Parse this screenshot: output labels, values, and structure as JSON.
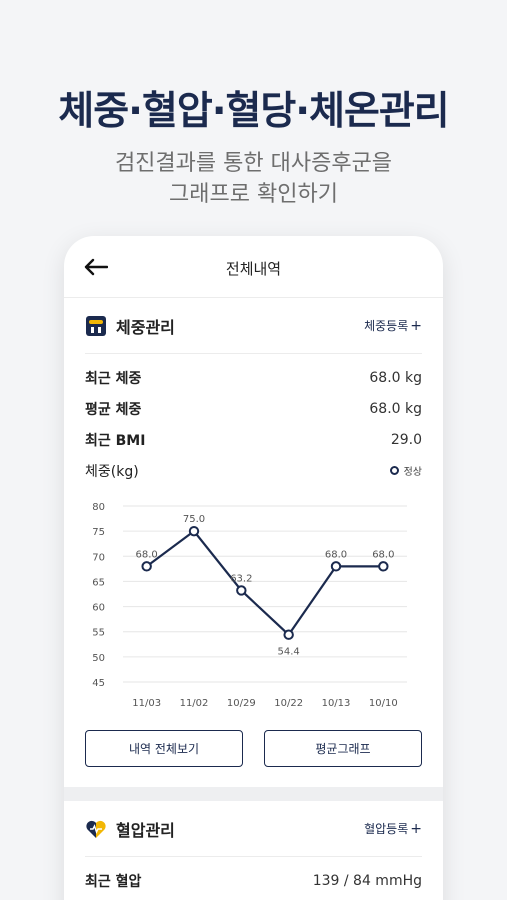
{
  "hero": {
    "title": "체중·혈압·혈당·체온관리",
    "subtitle_line1": "검진결과를 통한 대사증후군을",
    "subtitle_line2": "그래프로 확인하기"
  },
  "nav": {
    "title": "전체내역",
    "back_icon": "arrow-left-icon"
  },
  "weight": {
    "title": "체중관리",
    "icon": "scale-icon",
    "register_label": "체중등록",
    "plus": "+",
    "rows": [
      {
        "label": "최근 체중",
        "value": "68.0 kg"
      },
      {
        "label": "평균 체중",
        "value": "68.0 kg"
      },
      {
        "label": "최근 BMI",
        "value": "29.0"
      }
    ],
    "chart_label": "체중(kg)",
    "legend_label": "정상",
    "btn_history": "내역 전체보기",
    "btn_avg": "평균그래프"
  },
  "blood_pressure": {
    "title": "혈압관리",
    "icon": "heart-pulse-icon",
    "register_label": "혈압등록",
    "plus": "+",
    "rows": [
      {
        "label": "최근 혈압",
        "value": "139 / 84 mmHg"
      }
    ]
  },
  "colors": {
    "accent": "#1b2a4e",
    "heart_yellow": "#f2b705"
  },
  "chart_data": {
    "type": "line",
    "categories": [
      "11/03",
      "11/02",
      "10/29",
      "10/22",
      "10/13",
      "10/10"
    ],
    "values": [
      68.0,
      75.0,
      63.2,
      54.4,
      68.0,
      68.0
    ],
    "value_labels": [
      "68.0",
      "75.0",
      "63.2",
      "54.4",
      "68.0",
      "68.0"
    ],
    "ylim": [
      45,
      80
    ],
    "yticks": [
      80,
      75,
      70,
      65,
      60,
      55,
      50,
      45
    ],
    "ylabel": "체중(kg)",
    "legend": [
      {
        "name": "정상"
      }
    ],
    "grid": true
  }
}
